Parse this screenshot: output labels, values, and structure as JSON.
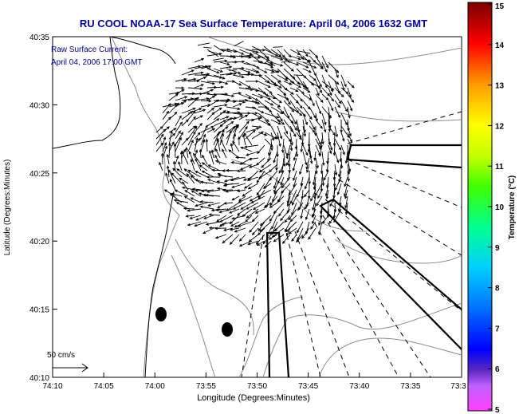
{
  "title": "RU COOL  NOAA-17  Sea Surface Temperature:  April 04, 2006 1632 GMT",
  "annotation": {
    "line1": "Raw Surface Current:",
    "line2": "April 04, 2006 17:00 GMT"
  },
  "scale_label": "50 cm/s",
  "x_axis": {
    "label": "Longitude (Degrees:Minutes)",
    "ticks": [
      "74:10",
      "74:05",
      "74:00",
      "73:55",
      "73:50",
      "73:45",
      "73:40",
      "73:35",
      "73:3"
    ]
  },
  "y_axis": {
    "label": "Latitude (Degrees:Minutes)",
    "ticks": [
      "40:35",
      "40:30",
      "40:25",
      "40:20",
      "40:15",
      "40:10"
    ]
  },
  "colorbar": {
    "label": "Temperature (°C)",
    "ticks": [
      "15",
      "14",
      "13",
      "12",
      "11",
      "10",
      "9",
      "8",
      "7",
      "6",
      "5"
    ],
    "min": 5,
    "max": 15
  },
  "colors": {
    "title": "#0000a0",
    "annotation": "#0000a0",
    "vector": "#000000",
    "contour": "#8c8c8c"
  }
}
